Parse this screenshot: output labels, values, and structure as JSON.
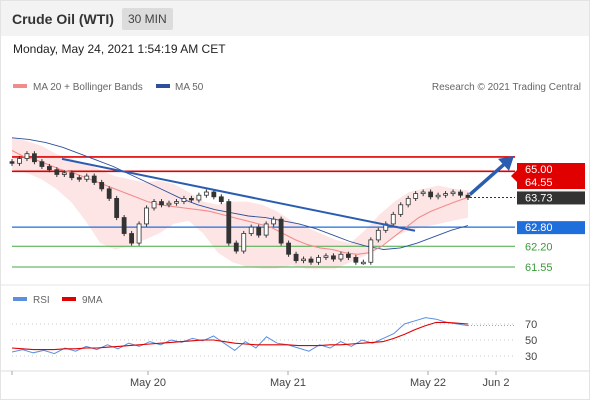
{
  "header": {
    "title": "Crude Oil (WTI)",
    "timeframe": "30 MIN"
  },
  "timestamp": "Monday, May 24, 2021 1:54:19 AM CET",
  "legend": {
    "ma20": "MA 20 + Bollinger Bands",
    "ma50": "MA 50",
    "rsi": "RSI",
    "rsi_ma": "9MA"
  },
  "copyright": "Research © 2021 Trading Central",
  "colors": {
    "resistance": "#e00000",
    "support": "#1e6fdc",
    "support_level": "#44aa44",
    "ma50": "#2e4f9c",
    "ma20": "#f28c8c",
    "bollinger": "#fde2e2",
    "candle": "#333333",
    "current_price": "#333333",
    "rsi": "#5b8fe0",
    "rsi_ma": "#e00000",
    "trend_arrow": "#2a5db0"
  },
  "icons": [
    "trend-arrow-icon"
  ],
  "chart_data": {
    "type": "candlestick",
    "instrument": "Crude Oil (WTI)",
    "timeframe": "30 MIN",
    "x_ticks": [
      "May 20",
      "May 21",
      "May 22",
      "Jun 2"
    ],
    "levels": [
      {
        "label": "65.00",
        "value": 65.0,
        "kind": "resistance"
      },
      {
        "label": "64.55",
        "value": 64.55,
        "kind": "resistance"
      },
      {
        "label": "63.73",
        "value": 63.73,
        "kind": "current"
      },
      {
        "label": "62.80",
        "value": 62.8,
        "kind": "support"
      },
      {
        "label": "62.20",
        "value": 62.2,
        "kind": "support-minor"
      },
      {
        "label": "61.55",
        "value": 61.55,
        "kind": "support-minor"
      }
    ],
    "ylim": [
      61.3,
      66.0
    ],
    "close_series": [
      64.8,
      64.95,
      65.1,
      64.85,
      64.7,
      64.6,
      64.45,
      64.5,
      64.35,
      64.3,
      64.4,
      64.2,
      64.0,
      63.7,
      63.1,
      62.6,
      62.3,
      62.9,
      63.4,
      63.6,
      63.5,
      63.55,
      63.6,
      63.7,
      63.65,
      63.8,
      63.9,
      63.75,
      63.6,
      62.3,
      62.05,
      62.6,
      62.8,
      62.55,
      62.9,
      63.05,
      62.3,
      61.95,
      61.75,
      61.8,
      61.7,
      61.85,
      61.9,
      61.8,
      61.95,
      61.85,
      61.7,
      61.7,
      62.4,
      62.7,
      62.9,
      63.2,
      63.5,
      63.7,
      63.85,
      63.9,
      63.75,
      63.8,
      63.85,
      63.9,
      63.8,
      63.73
    ],
    "ma20_series": [
      65.2,
      65.0,
      64.9,
      64.75,
      64.6,
      64.5,
      64.35,
      64.2,
      64.05,
      63.9,
      63.75,
      63.6,
      63.5,
      63.45,
      63.4,
      63.35,
      63.3,
      63.2,
      63.1,
      63.0,
      62.9,
      62.8,
      62.6,
      62.4,
      62.25,
      62.15,
      62.1,
      62.0,
      61.95,
      62.0,
      62.2,
      62.5,
      62.8,
      63.1,
      63.3,
      63.45,
      63.6,
      63.73
    ],
    "bollinger_upper": [
      65.6,
      65.5,
      65.35,
      65.1,
      64.95,
      64.8,
      64.6,
      64.4,
      64.3,
      64.2,
      64.25,
      64.15,
      63.9,
      63.6,
      63.5,
      63.6,
      63.6,
      63.5,
      63.3,
      63.0,
      62.8,
      62.6,
      62.4,
      62.3,
      62.7,
      63.2,
      63.6,
      63.9,
      64.0,
      64.1,
      64.0,
      63.95
    ],
    "bollinger_lower": [
      64.6,
      64.5,
      64.3,
      64.0,
      63.6,
      63.0,
      62.3,
      62.1,
      62.2,
      62.4,
      62.6,
      62.9,
      63.0,
      62.6,
      62.0,
      61.7,
      61.55,
      61.5,
      61.5,
      61.6,
      61.5,
      61.5,
      61.5,
      61.7,
      61.9,
      62.2,
      62.5,
      62.7,
      62.8,
      62.9,
      63.0,
      63.1
    ],
    "ma50_series": [
      65.6,
      65.55,
      65.45,
      65.3,
      65.1,
      64.9,
      64.7,
      64.45,
      64.2,
      63.95,
      63.7,
      63.5,
      63.35,
      63.25,
      63.15,
      63.1,
      63.0,
      62.9,
      62.75,
      62.55,
      62.35,
      62.2,
      62.1,
      62.15,
      62.3,
      62.5,
      62.7,
      62.85
    ],
    "trendline": [
      65.0,
      62.75
    ],
    "rsi": {
      "levels": [
        70,
        50,
        30
      ],
      "values": [
        35,
        38,
        34,
        37,
        33,
        40,
        36,
        42,
        38,
        44,
        39,
        46,
        42,
        48,
        44,
        50,
        47,
        52,
        49,
        55,
        46,
        37,
        48,
        40,
        54,
        46,
        44,
        40,
        36,
        44,
        40,
        48,
        42,
        50,
        46,
        52,
        58,
        70,
        74,
        78,
        76,
        72,
        70,
        68
      ],
      "ma_values": [
        40,
        39,
        38,
        38,
        38,
        39,
        39,
        40,
        40,
        41,
        42,
        43,
        44,
        45,
        46,
        47,
        48,
        49,
        50,
        50,
        48,
        46,
        45,
        44,
        44,
        44,
        44,
        43,
        43,
        43,
        44,
        44,
        45,
        46,
        47,
        48,
        52,
        57,
        63,
        68,
        72,
        72,
        71,
        70
      ]
    }
  }
}
